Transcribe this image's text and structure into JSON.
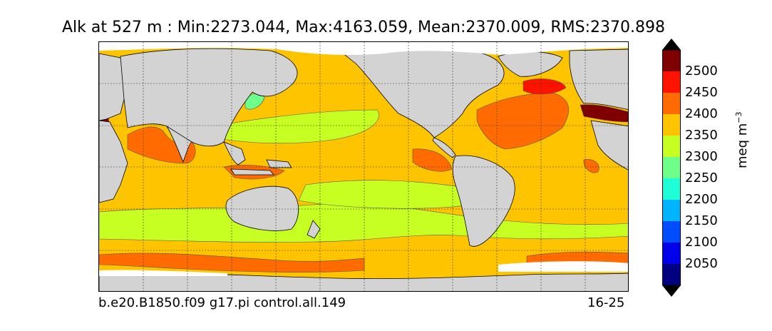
{
  "title": "Alk at 527 m : Min:2273.044, Max:4163.059, Mean:2370.009, RMS:2370.898",
  "footer": {
    "case_name": "b.e20.B1850.f09 g17.pi control.all.149",
    "years": "16-25"
  },
  "colorbar": {
    "units_label": "meq m",
    "units_exponent": "−3",
    "tick_labels": [
      "2500",
      "2450",
      "2400",
      "2350",
      "2300",
      "2250",
      "2200",
      "2150",
      "2100",
      "2050"
    ],
    "colors": [
      "#7f0000",
      "#ff1300",
      "#ff6b00",
      "#ffc400",
      "#c8ff23",
      "#6dff8a",
      "#1effd8",
      "#00b4ff",
      "#004cff",
      "#0000e9",
      "#000080"
    ]
  },
  "map": {
    "land_color": "#d3d3d3",
    "ice_color": "#ffffff",
    "contour_color": "#555555"
  }
}
